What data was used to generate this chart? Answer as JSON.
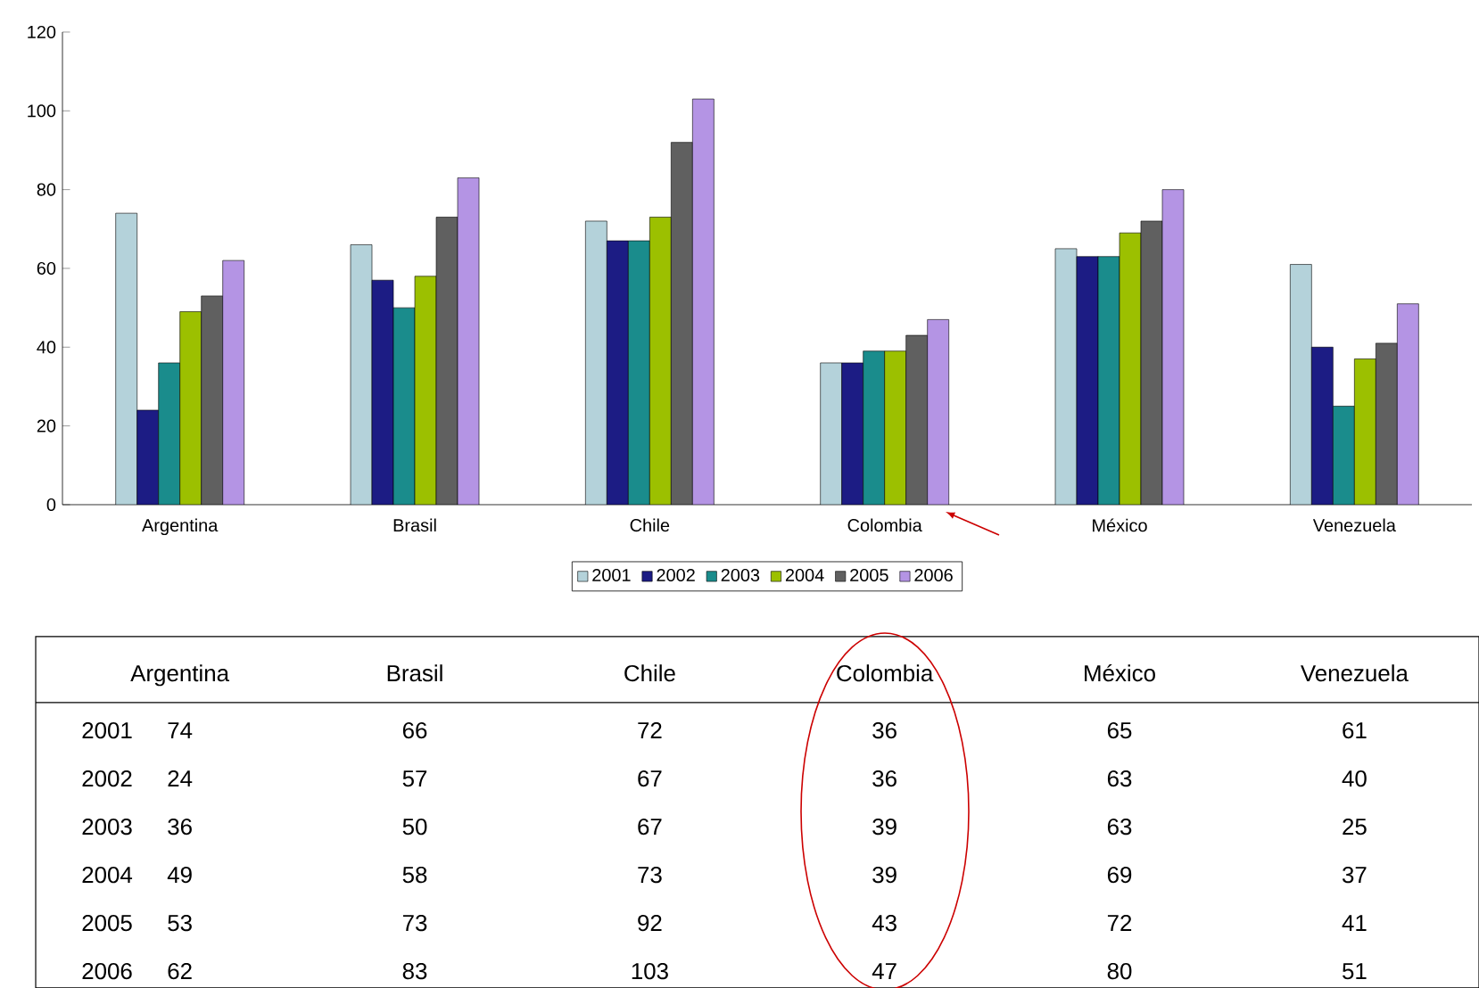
{
  "chart_data": {
    "type": "bar",
    "categories": [
      "Argentina",
      "Brasil",
      "Chile",
      "Colombia",
      "México",
      "Venezuela"
    ],
    "series": [
      {
        "name": "2001",
        "color": "#b4d2da",
        "values": [
          74,
          66,
          72,
          36,
          65,
          61
        ],
        "value_labels": [
          "74",
          "66",
          "72",
          "36",
          "65",
          "61"
        ]
      },
      {
        "name": "2002",
        "color": "#1c1c84",
        "values": [
          24,
          57,
          67,
          36,
          63,
          40
        ],
        "value_labels": [
          "24",
          "57",
          "67",
          "36",
          "63",
          "40"
        ]
      },
      {
        "name": "2003",
        "color": "#1a8c8c",
        "values": [
          36,
          50,
          67,
          39,
          63,
          25
        ],
        "value_labels": [
          "36",
          "50",
          "67",
          "39",
          "63",
          "25"
        ]
      },
      {
        "name": "2004",
        "color": "#9cc000",
        "values": [
          49,
          58,
          73,
          39,
          69,
          37
        ],
        "value_labels": [
          "49",
          "58",
          "73",
          "39",
          "69",
          "37"
        ]
      },
      {
        "name": "2005",
        "color": "#606060",
        "values": [
          53,
          73,
          92,
          43,
          72,
          41
        ],
        "value_labels": [
          "53",
          "73",
          "92",
          "43",
          "72",
          "41"
        ]
      },
      {
        "name": "2006",
        "color": "#b494e4",
        "values": [
          62,
          83,
          103,
          47,
          80,
          51
        ],
        "value_labels": [
          "62",
          "83",
          "103",
          "47",
          "80",
          "51"
        ]
      }
    ],
    "ylim": [
      0,
      120
    ],
    "yticks": [
      0,
      20,
      40,
      60,
      80,
      100,
      120
    ],
    "legend": "bottom"
  }
}
